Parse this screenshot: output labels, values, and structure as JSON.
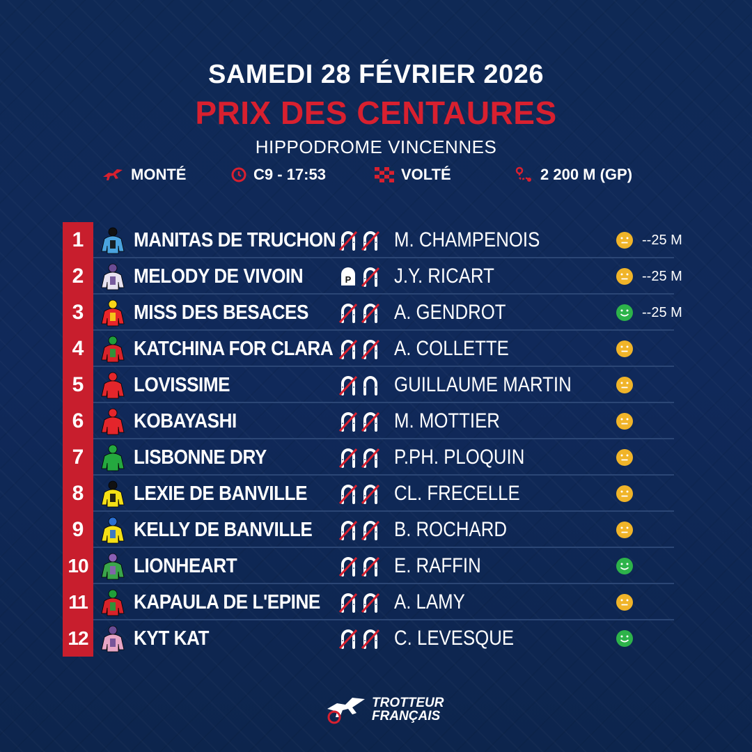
{
  "header": {
    "date": "SAMEDI 28 FÉVRIER 2026",
    "race_name": "PRIX DES CENTAURES",
    "venue": "HIPPODROME VINCENNES"
  },
  "info": {
    "discipline": "MONTÉ",
    "race_time": "C9 - 17:53",
    "start": "VOLTÉ",
    "distance": "2 200 M (GP)"
  },
  "colors": {
    "accent_red": "#c81e2d",
    "background": "#0f2a54",
    "smiley_neutral": "#f0b429",
    "smiley_happy": "#2db34a"
  },
  "runners": [
    {
      "number": "1",
      "horse": "MANITAS DE TRUCHON",
      "driver": "M. CHAMPENOIS",
      "mood": "neutral",
      "handicap": "--25 M",
      "jacket": [
        "#4aa3df",
        "#111"
      ],
      "shoes": [
        "barred",
        "barred"
      ]
    },
    {
      "number": "2",
      "horse": "MELODY DE VIVOIN",
      "driver": "J.Y. RICART",
      "mood": "neutral",
      "handicap": "--25 M",
      "jacket": [
        "#e8e3f0",
        "#6a4c93"
      ],
      "shoes": [
        "plate",
        "barred"
      ]
    },
    {
      "number": "3",
      "horse": "MISS DES BESACES",
      "driver": "A. GENDROT",
      "mood": "happy",
      "handicap": "--25 M",
      "jacket": [
        "#e8252a",
        "#f6d518"
      ],
      "shoes": [
        "barred",
        "barred"
      ]
    },
    {
      "number": "4",
      "horse": "KATCHINA FOR CLARA",
      "driver": "A. COLLETTE",
      "mood": "neutral",
      "handicap": "",
      "jacket": [
        "#d8232a",
        "#1f9e3a"
      ],
      "shoes": [
        "barred",
        "barred"
      ]
    },
    {
      "number": "5",
      "horse": "LOVISSIME",
      "driver": "GUILLAUME MARTIN",
      "mood": "neutral",
      "handicap": "",
      "jacket": [
        "#e3262b",
        "#e3262b"
      ],
      "shoes": [
        "barred",
        "plain"
      ]
    },
    {
      "number": "6",
      "horse": "KOBAYASHI",
      "driver": "M. MOTTIER",
      "mood": "neutral",
      "handicap": "",
      "jacket": [
        "#e3262b",
        "#e3262b"
      ],
      "shoes": [
        "barred",
        "barred"
      ]
    },
    {
      "number": "7",
      "horse": "LISBONNE DRY",
      "driver": "P.PH. PLOQUIN",
      "mood": "neutral",
      "handicap": "",
      "jacket": [
        "#25a83f",
        "#25a83f"
      ],
      "shoes": [
        "barred",
        "barred"
      ]
    },
    {
      "number": "8",
      "horse": "LEXIE DE BANVILLE",
      "driver": "CL. FRECELLE",
      "mood": "neutral",
      "handicap": "",
      "jacket": [
        "#f5e016",
        "#111"
      ],
      "shoes": [
        "barred",
        "barred"
      ]
    },
    {
      "number": "9",
      "horse": "KELLY DE BANVILLE",
      "driver": "B. ROCHARD",
      "mood": "neutral",
      "handicap": "",
      "jacket": [
        "#f5e016",
        "#2a6fd1"
      ],
      "shoes": [
        "barred",
        "barred"
      ]
    },
    {
      "number": "10",
      "horse": "LIONHEART",
      "driver": "E. RAFFIN",
      "mood": "happy",
      "handicap": "",
      "jacket": [
        "#3aa54a",
        "#8a5fb4"
      ],
      "shoes": [
        "barred",
        "barred"
      ]
    },
    {
      "number": "11",
      "horse": "KAPAULA DE L'EPINE",
      "driver": "A. LAMY",
      "mood": "neutral",
      "handicap": "",
      "jacket": [
        "#d8232a",
        "#1f9e3a"
      ],
      "shoes": [
        "barred",
        "barred"
      ]
    },
    {
      "number": "12",
      "horse": "KYT KAT",
      "driver": "C. LEVESQUE",
      "mood": "happy",
      "handicap": "",
      "jacket": [
        "#e7a6c6",
        "#6a4c93"
      ],
      "shoes": [
        "barred",
        "barred"
      ]
    }
  ],
  "footer": {
    "logo_line1": "TROTTEUR",
    "logo_line2": "FRANÇAIS"
  }
}
